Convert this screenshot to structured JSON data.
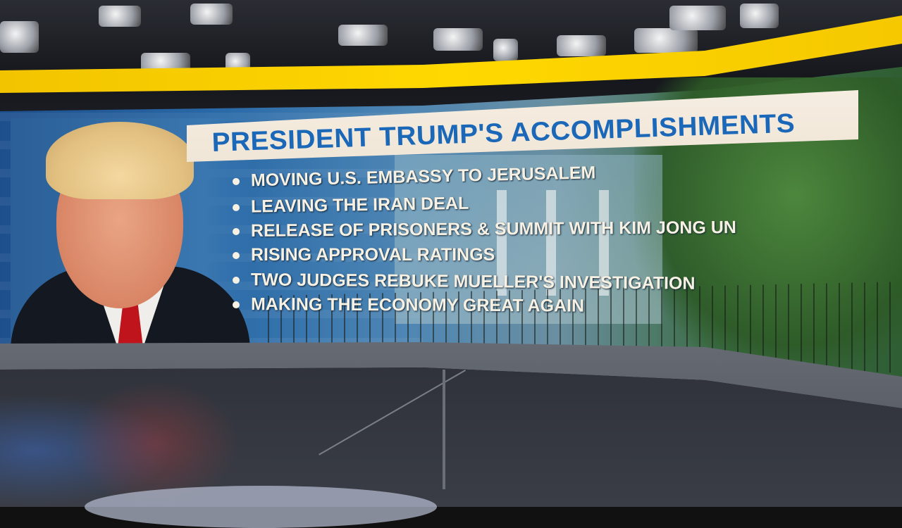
{
  "graphic": {
    "title": "PRESIDENT TRUMP'S ACCOMPLISHMENTS",
    "bullets": [
      "MOVING U.S. EMBASSY TO JERUSALEM",
      "LEAVING THE IRAN DEAL",
      "RELEASE OF PRISONERS & SUMMIT WITH KIM JONG UN",
      "RISING APPROVAL RATINGS",
      "TWO JUDGES REBUKE MUELLER'S INVESTIGATION",
      "MAKING THE ECONOMY GREAT AGAIN"
    ]
  },
  "colors": {
    "title_text": "#1b68b8",
    "banner": "#fbf6ee",
    "studio_band": "#ffd800",
    "bullet_text": "#f7f1e4"
  }
}
